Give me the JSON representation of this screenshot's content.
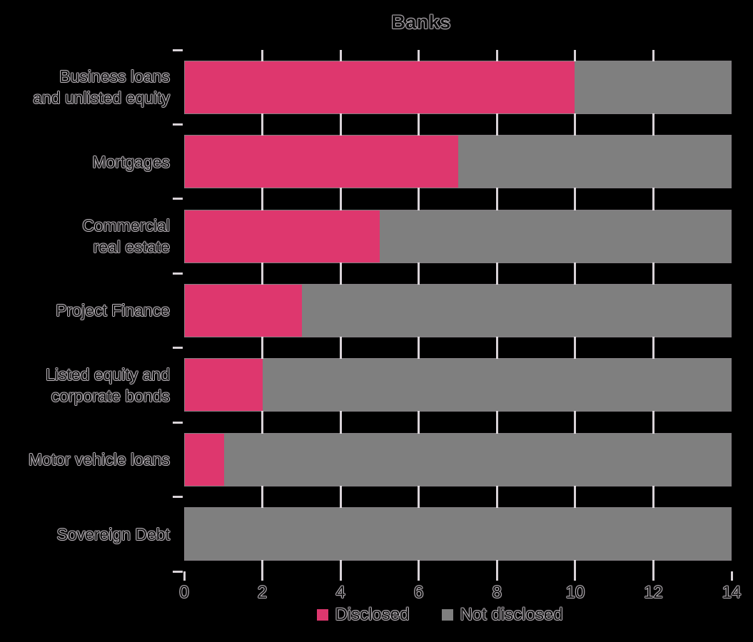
{
  "figure": {
    "background": "#000000",
    "axis_color": "#D8D2D7",
    "bar_edge_color": "rgba(236,230,236,0.55)"
  },
  "chart_data": {
    "type": "bar",
    "orientation": "horizontal",
    "stacked": true,
    "title": "Banks",
    "categories": [
      "Business loans and unlisted equity",
      "Mortgages",
      "Commercial real estate",
      "Project Finance",
      "Listed equity and corporate bonds",
      "Motor vehicle loans",
      "Sovereign Debt"
    ],
    "category_label_lines": [
      [
        "Business loans",
        "and unlisted equity"
      ],
      [
        "Mortgages"
      ],
      [
        "Commercial",
        "real estate"
      ],
      [
        "Project Finance"
      ],
      [
        "Listed equity and",
        "corporate bonds"
      ],
      [
        "Motor vehicle loans"
      ],
      [
        "Sovereign Debt"
      ]
    ],
    "series": [
      {
        "name": "Disclosed",
        "color": "#DE376E",
        "values": [
          10,
          7,
          5,
          3,
          2,
          1,
          0
        ]
      },
      {
        "name": "Not disclosed",
        "color": "#7F7F7F",
        "values": [
          4,
          7,
          9,
          11,
          12,
          13,
          14
        ]
      }
    ],
    "xlim": [
      0,
      14
    ],
    "xticks": [
      0,
      2,
      4,
      6,
      8,
      10,
      12,
      14
    ],
    "grid": "vertical gridlines at even x values, visible in gaps between bars",
    "legend_position": "bottom center",
    "legend": [
      "Disclosed",
      "Not disclosed"
    ]
  }
}
